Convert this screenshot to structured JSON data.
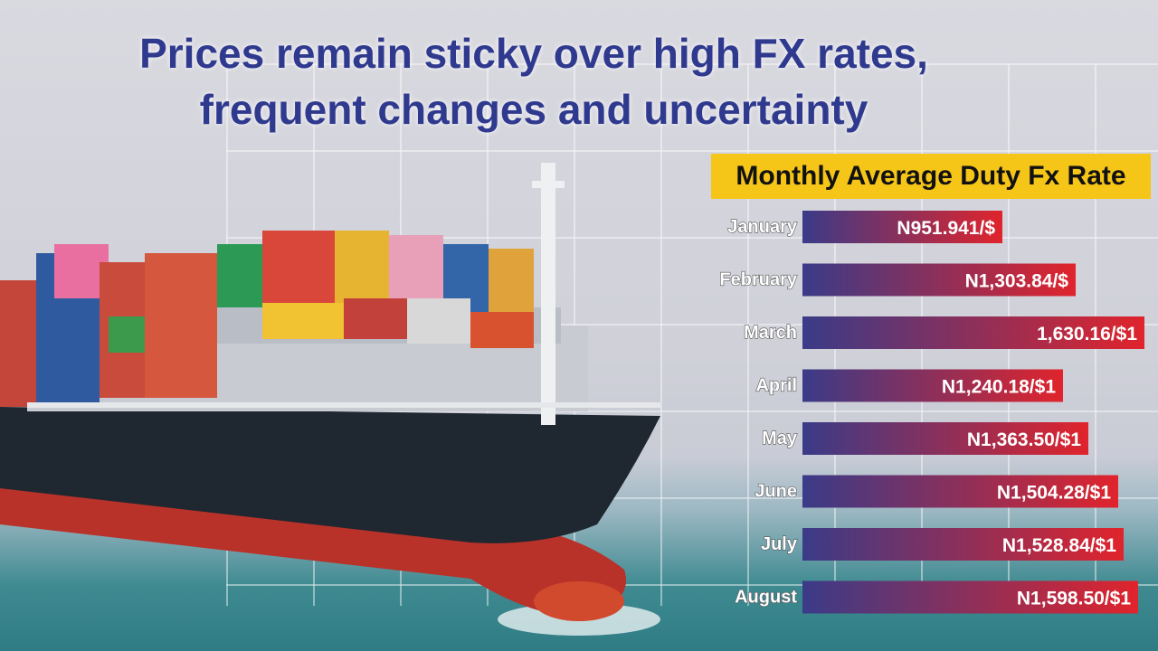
{
  "headline": {
    "line1": "Prices remain sticky over high FX rates,",
    "line2": "frequent changes and uncertainty"
  },
  "colors": {
    "headline": "#2f3a8f",
    "title_bg": "#f5c518",
    "bar_start": "#3a3b88",
    "bar_end": "#e0242c"
  },
  "chart_data": {
    "type": "bar",
    "orientation": "horizontal",
    "title": "Monthly Average Duty Fx Rate",
    "xlabel": "",
    "ylabel": "",
    "grid": false,
    "legend": "none",
    "categories": [
      "January",
      "February",
      "March",
      "April",
      "May",
      "June",
      "July",
      "August"
    ],
    "values": [
      951.941,
      1303.84,
      1630.16,
      1240.18,
      1363.5,
      1504.28,
      1528.84,
      1598.5
    ],
    "value_labels": [
      "N951.941/$",
      "N1,303.84/$",
      "1,630.16/$1",
      "N1,240.18/$1",
      "N1,363.50/$1",
      "N1,504.28/$1",
      "N1,528.84/$1",
      "N1,598.50/$1"
    ]
  }
}
